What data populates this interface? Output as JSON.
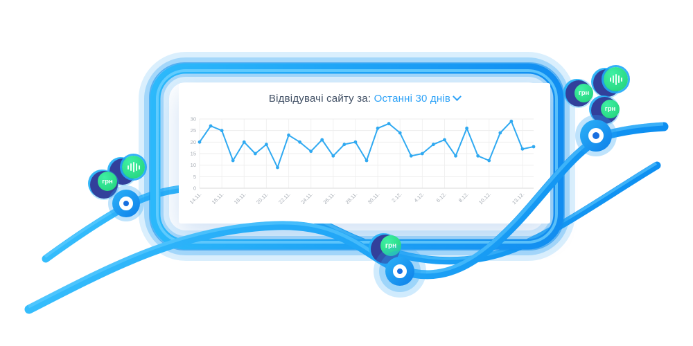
{
  "card": {
    "title_prefix": "Відвідувачі сайту за:",
    "period_value": "Останні 30 днів"
  },
  "chart_data": {
    "type": "line",
    "title": "Відвідувачі сайту",
    "period": "Останні 30 днів",
    "x": [
      "14.11.",
      "15.11.",
      "16.11.",
      "17.11.",
      "18.11.",
      "19.11.",
      "20.11.",
      "21.11.",
      "22.11.",
      "23.11.",
      "24.11.",
      "25.11.",
      "26.11.",
      "27.11.",
      "28.11.",
      "29.11.",
      "30.11.",
      "1.12.",
      "2.12.",
      "3.12.",
      "4.12.",
      "5.12.",
      "6.12.",
      "7.12.",
      "8.12.",
      "9.12.",
      "10.12.",
      "11.12.",
      "12.12.",
      "13.12.",
      "14.12."
    ],
    "values": [
      20,
      27,
      25,
      12,
      20,
      15,
      19,
      9,
      23,
      20,
      16,
      21,
      14,
      19,
      20,
      12,
      26,
      28,
      24,
      14,
      15,
      19,
      21,
      14,
      26,
      14,
      12,
      24,
      29,
      17,
      18
    ],
    "x_tick_indices": [
      0,
      2,
      4,
      6,
      8,
      10,
      12,
      14,
      16,
      18,
      20,
      22,
      24,
      26,
      29
    ],
    "x_tick_labels": [
      "14.11.",
      "16.11.",
      "18.11.",
      "20.11.",
      "22.11.",
      "24.11.",
      "26.11.",
      "28.11.",
      "30.11.",
      "2.12.",
      "4.12.",
      "6.12.",
      "8.12.",
      "10.12.",
      "13.12."
    ],
    "yticks": [
      0,
      5,
      10,
      15,
      20,
      25,
      30
    ],
    "ylim": [
      0,
      30
    ],
    "grid": true,
    "legend_position": "none",
    "line_color": "#2fa9f1"
  },
  "badges": {
    "currency_label": "грн"
  },
  "icons": {
    "period_chevron": "chevron-down",
    "badge_waveform": "audio-waveform",
    "badge_target": "bullseye-ring"
  },
  "colors": {
    "accent_blue": "#1ea7f5",
    "swoosh_light": "#4cc3ff",
    "swoosh_deep": "#0d8ff1",
    "title_dark": "#3f4e63",
    "title_blue": "#2ba1f7",
    "badge_navy": "#32409b",
    "badge_green": "#27dd87",
    "axis_label_gray": "#a7adb5",
    "card_bg": "#ffffff"
  }
}
